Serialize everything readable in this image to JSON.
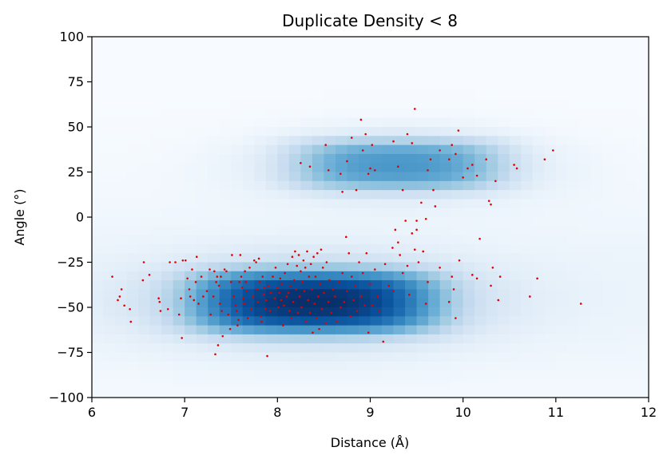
{
  "chart_data": {
    "type": "heatmap",
    "title": "Duplicate Density < 8",
    "xlabel": "Distance (Å)",
    "ylabel": "Angle (°)",
    "xlim": [
      6,
      12
    ],
    "ylim": [
      -100,
      100
    ],
    "xticks": [
      "6",
      "7",
      "8",
      "9",
      "10",
      "11",
      "12"
    ],
    "yticks": [
      "−100",
      "−75",
      "−50",
      "−25",
      "0",
      "25",
      "50",
      "75",
      "100"
    ],
    "colormap": "Blues",
    "point_color": "#e00000",
    "grid": false,
    "legend": "none",
    "density_clusters": [
      {
        "label": "lower",
        "x_center": 8.4,
        "y_center": -47,
        "x_spread": 1.15,
        "y_spread": 16,
        "peak": 1.0
      },
      {
        "label": "upper",
        "x_center": 9.3,
        "y_center": 29,
        "x_spread": 1.0,
        "y_spread": 13,
        "peak": 0.62
      }
    ],
    "points": [
      [
        6.22,
        -33
      ],
      [
        6.28,
        -46
      ],
      [
        6.3,
        -44
      ],
      [
        6.32,
        -40
      ],
      [
        6.35,
        -49
      ],
      [
        6.41,
        -51
      ],
      [
        6.42,
        -58
      ],
      [
        6.55,
        -35
      ],
      [
        6.56,
        -25
      ],
      [
        6.62,
        -32
      ],
      [
        6.72,
        -45
      ],
      [
        6.73,
        -47
      ],
      [
        6.74,
        -52
      ],
      [
        6.82,
        -51
      ],
      [
        6.84,
        -25
      ],
      [
        6.9,
        -25
      ],
      [
        6.94,
        -54
      ],
      [
        6.96,
        -45
      ],
      [
        6.97,
        -67
      ],
      [
        6.98,
        -24
      ],
      [
        7.01,
        -24
      ],
      [
        7.03,
        -34
      ],
      [
        7.05,
        -40
      ],
      [
        7.06,
        -44
      ],
      [
        7.08,
        -29
      ],
      [
        7.1,
        -46
      ],
      [
        7.12,
        -36
      ],
      [
        7.13,
        -22
      ],
      [
        7.15,
        -48
      ],
      [
        7.18,
        -33
      ],
      [
        7.2,
        -44
      ],
      [
        7.24,
        -41
      ],
      [
        7.27,
        -29
      ],
      [
        7.28,
        -54
      ],
      [
        7.31,
        -44
      ],
      [
        7.32,
        -30
      ],
      [
        7.33,
        -76
      ],
      [
        7.34,
        -36
      ],
      [
        7.35,
        -33
      ],
      [
        7.36,
        -71
      ],
      [
        7.37,
        -38
      ],
      [
        7.38,
        -48
      ],
      [
        7.39,
        -33
      ],
      [
        7.4,
        -52
      ],
      [
        7.41,
        -66
      ],
      [
        7.43,
        -29
      ],
      [
        7.45,
        -30
      ],
      [
        7.47,
        -54
      ],
      [
        7.49,
        -62
      ],
      [
        7.5,
        -36
      ],
      [
        7.51,
        -21
      ],
      [
        7.53,
        -44
      ],
      [
        7.55,
        -49
      ],
      [
        7.56,
        -52
      ],
      [
        7.57,
        -60
      ],
      [
        7.58,
        -57
      ],
      [
        7.59,
        -36
      ],
      [
        7.6,
        -21
      ],
      [
        7.61,
        -33
      ],
      [
        7.62,
        -39
      ],
      [
        7.63,
        -45
      ],
      [
        7.64,
        -48
      ],
      [
        7.65,
        -30
      ],
      [
        7.66,
        -36
      ],
      [
        7.67,
        -41
      ],
      [
        7.68,
        -56
      ],
      [
        7.7,
        -28
      ],
      [
        7.72,
        -51
      ],
      [
        7.74,
        -44
      ],
      [
        7.75,
        -24
      ],
      [
        7.77,
        -25
      ],
      [
        7.78,
        -40
      ],
      [
        7.79,
        -47
      ],
      [
        7.8,
        -23
      ],
      [
        7.81,
        -36
      ],
      [
        7.82,
        -55
      ],
      [
        7.83,
        -58
      ],
      [
        7.84,
        -33
      ],
      [
        7.85,
        -43
      ],
      [
        7.86,
        -39
      ],
      [
        7.87,
        -51
      ],
      [
        7.88,
        -46
      ],
      [
        7.89,
        -77
      ],
      [
        7.9,
        -38
      ],
      [
        7.92,
        -52
      ],
      [
        7.93,
        -42
      ],
      [
        7.95,
        -33
      ],
      [
        7.97,
        -45
      ],
      [
        7.98,
        -28
      ],
      [
        8.0,
        -39
      ],
      [
        8.01,
        -50
      ],
      [
        8.02,
        -42
      ],
      [
        8.03,
        -34
      ],
      [
        8.04,
        -46
      ],
      [
        8.05,
        -37
      ],
      [
        8.06,
        -60
      ],
      [
        8.07,
        -49
      ],
      [
        8.08,
        -31
      ],
      [
        8.1,
        -44
      ],
      [
        8.11,
        -26
      ],
      [
        8.12,
        -42
      ],
      [
        8.13,
        -52
      ],
      [
        8.14,
        -38
      ],
      [
        8.15,
        -56
      ],
      [
        8.16,
        -22
      ],
      [
        8.17,
        -47
      ],
      [
        8.18,
        -35
      ],
      [
        8.19,
        -19
      ],
      [
        8.2,
        -40
      ],
      [
        8.21,
        -27
      ],
      [
        8.22,
        -53
      ],
      [
        8.23,
        -21
      ],
      [
        8.24,
        -44
      ],
      [
        8.25,
        -30
      ],
      [
        8.26,
        -50
      ],
      [
        8.27,
        -36
      ],
      [
        8.28,
        -24
      ],
      [
        8.29,
        -41
      ],
      [
        8.3,
        -28
      ],
      [
        8.31,
        -58
      ],
      [
        8.32,
        -19
      ],
      [
        8.33,
        -46
      ],
      [
        8.34,
        -33
      ],
      [
        8.35,
        -53
      ],
      [
        8.36,
        -26
      ],
      [
        8.37,
        -40
      ],
      [
        8.38,
        -64
      ],
      [
        8.39,
        -22
      ],
      [
        8.4,
        -48
      ],
      [
        8.41,
        -33
      ],
      [
        8.42,
        -56
      ],
      [
        8.43,
        -20
      ],
      [
        8.44,
        -44
      ],
      [
        8.45,
        -62
      ],
      [
        8.46,
        -37
      ],
      [
        8.47,
        -18
      ],
      [
        8.48,
        -51
      ],
      [
        8.49,
        -28
      ],
      [
        8.5,
        -42
      ],
      [
        8.52,
        -59
      ],
      [
        8.53,
        -25
      ],
      [
        8.55,
        -47
      ],
      [
        8.56,
        -35
      ],
      [
        8.58,
        -53
      ],
      [
        8.6,
        -40
      ],
      [
        8.62,
        -44
      ],
      [
        8.64,
        -58
      ],
      [
        8.66,
        -36
      ],
      [
        8.68,
        -50
      ],
      [
        8.7,
        -31
      ],
      [
        8.72,
        -47
      ],
      [
        8.74,
        -11
      ],
      [
        8.75,
        -41
      ],
      [
        8.77,
        -20
      ],
      [
        8.79,
        -55
      ],
      [
        8.8,
        -33
      ],
      [
        8.82,
        -46
      ],
      [
        8.84,
        -38
      ],
      [
        8.86,
        -52
      ],
      [
        8.88,
        -25
      ],
      [
        8.9,
        -44
      ],
      [
        8.92,
        -31
      ],
      [
        8.94,
        -49
      ],
      [
        8.96,
        -20
      ],
      [
        8.98,
        -64
      ],
      [
        9.0,
        -37
      ],
      [
        9.02,
        -49
      ],
      [
        9.05,
        -29
      ],
      [
        9.08,
        -44
      ],
      [
        9.1,
        -52
      ],
      [
        9.14,
        -69
      ],
      [
        9.16,
        -26
      ],
      [
        9.2,
        -38
      ],
      [
        9.24,
        -17
      ],
      [
        9.25,
        -41
      ],
      [
        9.27,
        -7
      ],
      [
        9.3,
        -14
      ],
      [
        9.32,
        -21
      ],
      [
        9.35,
        -31
      ],
      [
        9.38,
        -2
      ],
      [
        9.4,
        -27
      ],
      [
        9.42,
        -43
      ],
      [
        9.45,
        -9
      ],
      [
        9.48,
        -18
      ],
      [
        9.5,
        -7
      ],
      [
        9.52,
        -25
      ],
      [
        9.57,
        -19
      ],
      [
        9.6,
        -48
      ],
      [
        9.62,
        -36
      ],
      [
        9.75,
        -28
      ],
      [
        9.85,
        -47
      ],
      [
        9.88,
        -33
      ],
      [
        9.9,
        -40
      ],
      [
        9.92,
        -56
      ],
      [
        9.96,
        -24
      ],
      [
        10.1,
        -32
      ],
      [
        10.15,
        -34
      ],
      [
        10.18,
        -12
      ],
      [
        10.3,
        -38
      ],
      [
        10.32,
        -28
      ],
      [
        10.38,
        -46
      ],
      [
        10.4,
        -33
      ],
      [
        10.72,
        -44
      ],
      [
        10.8,
        -34
      ],
      [
        11.27,
        -48
      ],
      [
        8.25,
        30
      ],
      [
        8.35,
        28
      ],
      [
        8.52,
        40
      ],
      [
        8.55,
        26
      ],
      [
        8.68,
        24
      ],
      [
        8.7,
        14
      ],
      [
        8.75,
        31
      ],
      [
        8.8,
        44
      ],
      [
        8.85,
        15
      ],
      [
        8.9,
        54
      ],
      [
        8.92,
        37
      ],
      [
        8.95,
        46
      ],
      [
        8.98,
        24
      ],
      [
        9.0,
        27
      ],
      [
        9.02,
        40
      ],
      [
        9.05,
        26
      ],
      [
        9.25,
        42
      ],
      [
        9.3,
        28
      ],
      [
        9.35,
        15
      ],
      [
        9.4,
        46
      ],
      [
        9.45,
        41
      ],
      [
        9.48,
        60
      ],
      [
        9.55,
        8
      ],
      [
        9.62,
        26
      ],
      [
        9.65,
        32
      ],
      [
        9.7,
        6
      ],
      [
        9.75,
        37
      ],
      [
        9.85,
        32
      ],
      [
        9.88,
        40
      ],
      [
        9.92,
        35
      ],
      [
        9.95,
        48
      ],
      [
        10.0,
        22
      ],
      [
        10.05,
        27
      ],
      [
        10.1,
        29
      ],
      [
        10.15,
        23
      ],
      [
        10.25,
        32
      ],
      [
        10.28,
        9
      ],
      [
        10.3,
        7
      ],
      [
        10.35,
        20
      ],
      [
        10.55,
        29
      ],
      [
        10.58,
        27
      ],
      [
        10.88,
        32
      ],
      [
        10.97,
        37
      ],
      [
        9.6,
        -1
      ],
      [
        9.68,
        15
      ],
      [
        9.5,
        -2
      ]
    ]
  }
}
